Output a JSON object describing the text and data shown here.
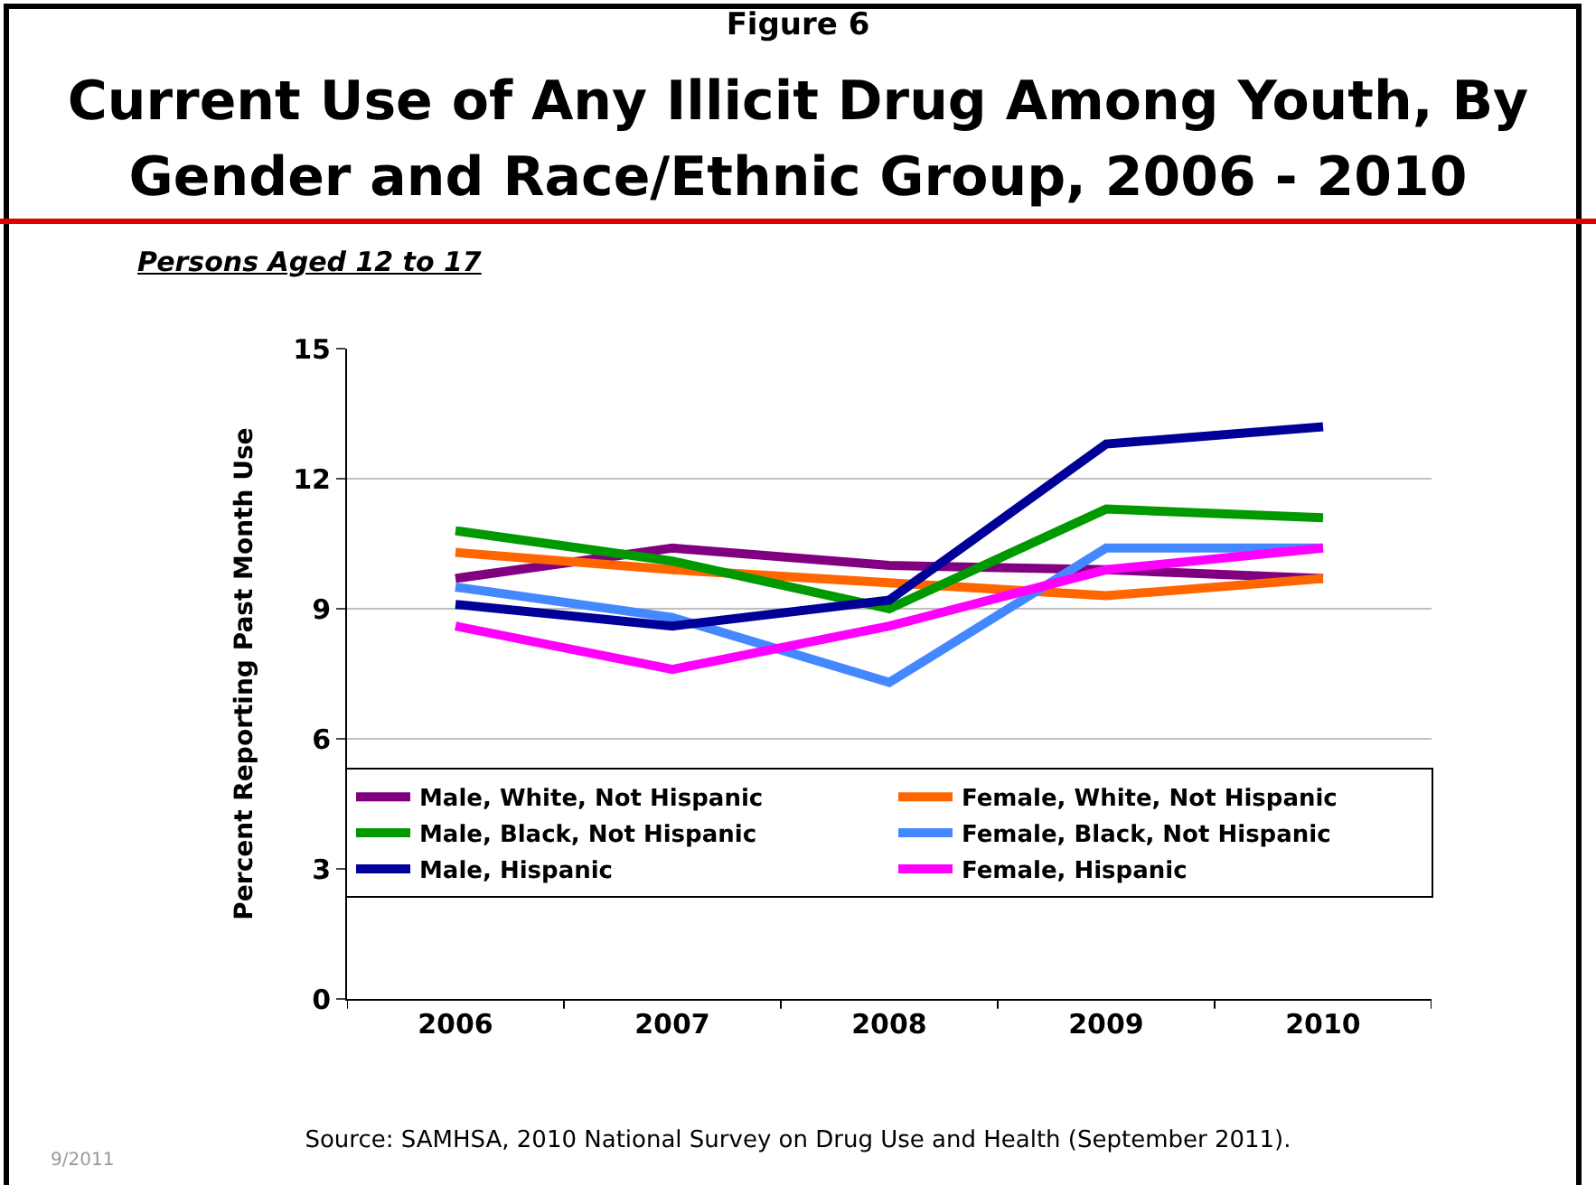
{
  "chart_data": {
    "type": "line",
    "title": "Current Use of Any Illicit Drug Among Youth, By Gender and Race/Ethnic Group, 2006 - 2010",
    "subtitle": "Persons Aged 12 to 17",
    "ylabel": "Percent Reporting Past Month Use",
    "annotations": [
      "Figure 6",
      "Source:  SAMHSA, 2010 National Survey on Drug Use and Health (September 2011).",
      "9/2011"
    ],
    "categories": [
      "2006",
      "2007",
      "2008",
      "2009",
      "2010"
    ],
    "series": [
      {
        "name": "Male, White, Not Hispanic",
        "color": "#800080",
        "values": [
          9.7,
          10.4,
          10.0,
          9.9,
          9.7
        ]
      },
      {
        "name": "Female, White, Not Hispanic",
        "color": "#ff6600",
        "values": [
          10.3,
          9.9,
          9.6,
          9.3,
          9.7
        ]
      },
      {
        "name": "Male, Black, Not Hispanic",
        "color": "#009900",
        "values": [
          10.8,
          10.1,
          9.0,
          11.3,
          11.1
        ]
      },
      {
        "name": "Female, Black, Not Hispanic",
        "color": "#4488ff",
        "values": [
          9.5,
          8.8,
          7.3,
          10.4,
          10.4
        ]
      },
      {
        "name": "Male, Hispanic",
        "color": "#000099",
        "values": [
          9.1,
          8.6,
          9.2,
          12.8,
          13.2
        ]
      },
      {
        "name": "Female, Hispanic",
        "color": "#ff00ff",
        "values": [
          8.6,
          7.6,
          8.6,
          9.9,
          10.4
        ]
      }
    ],
    "ylim": [
      0,
      15
    ],
    "yticks": [
      0,
      3,
      6,
      9,
      12,
      15
    ],
    "grid": "y",
    "legend": "bottom",
    "marker": "none",
    "line_style": "solid"
  }
}
